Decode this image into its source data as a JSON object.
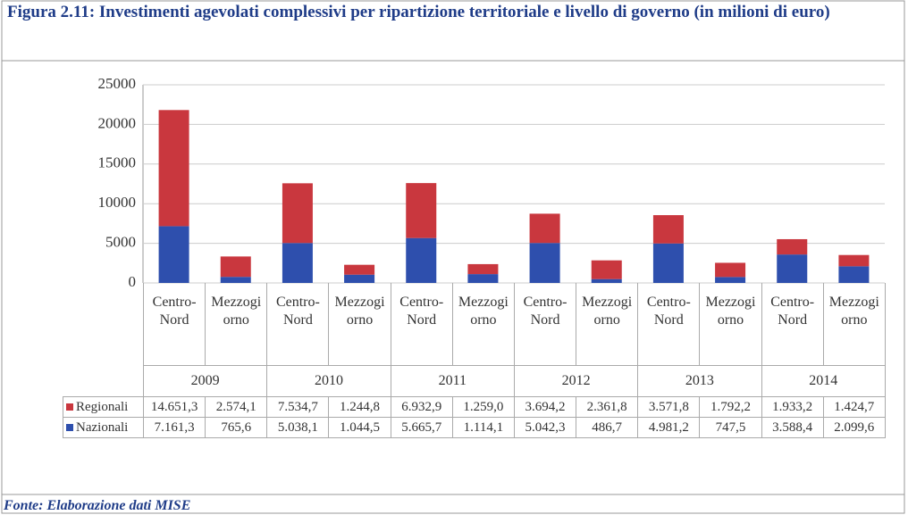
{
  "chart_data": {
    "type": "stacked_bar",
    "title": "Figura 2.11: Investimenti agevolati complessivi per ripartizione territoriale e livello di governo (in milioni di euro)",
    "source": "Fonte: Elaborazione dati MISE",
    "categories": [
      "Centro-\nNord",
      "Mezzogi\norno",
      "Centro-\nNord",
      "Mezzogi\norno",
      "Centro-\nNord",
      "Mezzogi\norno",
      "Centro-\nNord",
      "Mezzogi\norno",
      "Centro-\nNord",
      "Mezzogi\norno",
      "Centro-\nNord",
      "Mezzogi\norno"
    ],
    "groups": [
      "2009",
      "2010",
      "2011",
      "2012",
      "2013",
      "2014"
    ],
    "series": [
      {
        "name": "Regionali",
        "color": "#c9373e",
        "values": [
          14651.3,
          2574.1,
          7534.7,
          1244.8,
          6932.9,
          1259.0,
          3694.2,
          2361.8,
          3571.8,
          1792.2,
          1933.2,
          1424.7
        ],
        "value_labels": [
          "14.651,3",
          "2.574,1",
          "7.534,7",
          "1.244,8",
          "6.932,9",
          "1.259,0",
          "3.694,2",
          "2.361,8",
          "3.571,8",
          "1.792,2",
          "1.933,2",
          "1.424,7"
        ]
      },
      {
        "name": "Nazionali",
        "color": "#2e4fad",
        "values": [
          7161.3,
          765.6,
          5038.1,
          1044.5,
          5665.7,
          1114.1,
          5042.3,
          486.7,
          4981.2,
          747.5,
          3588.4,
          2099.6
        ],
        "value_labels": [
          "7.161,3",
          "765,6",
          "5.038,1",
          "1.044,5",
          "5.665,7",
          "1.114,1",
          "5.042,3",
          "486,7",
          "4.981,2",
          "747,5",
          "3.588,4",
          "2.099,6"
        ]
      }
    ],
    "ylim": [
      0,
      25000
    ],
    "yticks": [
      0,
      5000,
      10000,
      15000,
      20000,
      25000
    ],
    "grid": true
  }
}
